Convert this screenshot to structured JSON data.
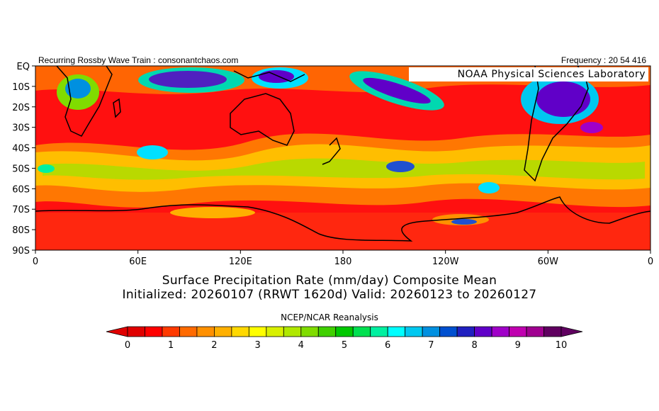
{
  "header": {
    "left": "Recurring Rossby Wave Train : consonantchaos.com",
    "right": "Frequency : 20 54 416"
  },
  "overlay_label": "NOAA Physical Sciences Laboratory",
  "map": {
    "lat_labels": [
      "EQ",
      "10S",
      "20S",
      "30S",
      "40S",
      "50S",
      "60S",
      "70S",
      "80S",
      "90S"
    ],
    "lon_labels": [
      "0",
      "60E",
      "120E",
      "180",
      "120W",
      "60W",
      "0"
    ]
  },
  "titles": {
    "line1": "Surface Precipitation Rate (mm/day) Composite Mean",
    "line2": "Initialized: 20260107 (RRWT 1620d) Valid: 20260123 to 20260127"
  },
  "source": "NCEP/NCAR Reanalysis",
  "colorbar": {
    "labels": [
      "0",
      "1",
      "2",
      "3",
      "4",
      "5",
      "6",
      "7",
      "8",
      "9",
      "10"
    ],
    "colors": [
      "#e00000",
      "#ff0000",
      "#ff3a00",
      "#ff6a00",
      "#ff9000",
      "#ffb000",
      "#ffd800",
      "#ffff00",
      "#d8f000",
      "#b0e800",
      "#80dc00",
      "#40d000",
      "#00c800",
      "#00e050",
      "#00f0a0",
      "#00ffff",
      "#00c8f0",
      "#0090e0",
      "#0050d0",
      "#2020c0",
      "#6000c8",
      "#a000c8",
      "#c000b0",
      "#a00090",
      "#600060"
    ]
  }
}
